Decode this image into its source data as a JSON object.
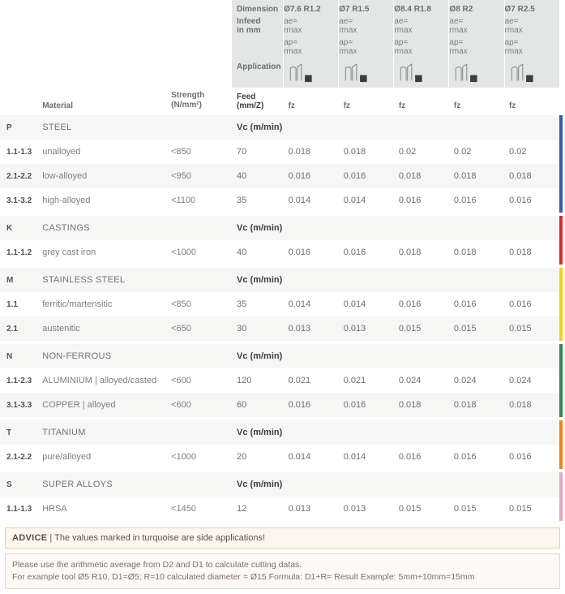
{
  "header": {
    "dimension_label": "Dimension",
    "infeed_label": "Infeed\nin mm",
    "application_label": "Application",
    "material_label": "Material",
    "strength_label": "Strength\n(N/mm²)",
    "feed_label": "Feed (mm/Z)",
    "fz": "fz",
    "ae": "ae=\nrmax",
    "ap": "ap=\nrmax",
    "dims": [
      "Ø7.6  R1.2",
      "Ø7  R1.5",
      "Ø8.4  R1.8",
      "Ø8  R2",
      "Ø7  R2.5"
    ]
  },
  "groups": [
    {
      "code": "P",
      "name": "STEEL",
      "vc_label": "Vc (m/min)",
      "color": "#2f5fa8",
      "rows": [
        {
          "code": "1.1-1.3",
          "mat": "unalloyed",
          "str": "<850",
          "vc": "70",
          "f": [
            "0.018",
            "0.018",
            "0.02",
            "0.02",
            "0.02"
          ]
        },
        {
          "code": "2.1-2.2",
          "mat": "low-alloyed",
          "str": "<950",
          "vc": "40",
          "f": [
            "0.016",
            "0.016",
            "0.018",
            "0.018",
            "0.018"
          ]
        },
        {
          "code": "3.1-3.2",
          "mat": "high-alloyed",
          "str": "<1100",
          "vc": "35",
          "f": [
            "0.014",
            "0.014",
            "0.016",
            "0.016",
            "0.016"
          ]
        }
      ]
    },
    {
      "code": "K",
      "name": "CASTINGS",
      "vc_label": "Vc (m/min)",
      "color": "#da2a2a",
      "rows": [
        {
          "code": "1.1-1.2",
          "mat": "grey cast iron",
          "str": "<1000",
          "vc": "40",
          "f": [
            "0.016",
            "0.016",
            "0.018",
            "0.018",
            "0.018"
          ]
        }
      ]
    },
    {
      "code": "M",
      "name": "STAINLESS STEEL",
      "vc_label": "Vc (m/min)",
      "color": "#f3d21a",
      "rows": [
        {
          "code": "1.1",
          "mat": "ferritic/martensitic",
          "str": "<850",
          "vc": "35",
          "f": [
            "0.014",
            "0.014",
            "0.016",
            "0.016",
            "0.016"
          ]
        },
        {
          "code": "2.1",
          "mat": "austenitic",
          "str": "<650",
          "vc": "30",
          "f": [
            "0.013",
            "0.013",
            "0.015",
            "0.015",
            "0.015"
          ]
        }
      ]
    },
    {
      "code": "N",
      "name": "NON-FERROUS",
      "vc_label": "Vc (m/min)",
      "color": "#2f8a4a",
      "rows": [
        {
          "code": "1.1-2.3",
          "mat": "ALUMINIUM | alloyed/casted",
          "str": "<600",
          "vc": "120",
          "f": [
            "0.021",
            "0.021",
            "0.024",
            "0.024",
            "0.024"
          ]
        },
        {
          "code": "3.1-3.3",
          "mat": "COPPER | alloyed",
          "str": "<600",
          "vc": "60",
          "f": [
            "0.016",
            "0.016",
            "0.018",
            "0.018",
            "0.018"
          ]
        }
      ]
    },
    {
      "code": "T",
      "name": "TITANIUM",
      "vc_label": "Vc (m/min)",
      "color": "#f08519",
      "rows": [
        {
          "code": "2.1-2.2",
          "mat": "pure/alloyed",
          "str": "<1000",
          "vc": "20",
          "f": [
            "0.014",
            "0.014",
            "0.016",
            "0.016",
            "0.016"
          ]
        }
      ]
    },
    {
      "code": "S",
      "name": "SUPER ALLOYS",
      "vc_label": "Vc (m/min)",
      "color": "#e5a8c4",
      "rows": [
        {
          "code": "1.1-1.3",
          "mat": "HRSA",
          "str": "<1450",
          "vc": "12",
          "f": [
            "0.013",
            "0.013",
            "0.015",
            "0.015",
            "0.015"
          ]
        }
      ]
    }
  ],
  "advice": {
    "title": "ADVICE",
    "sep": "  |  ",
    "text": "The values marked in turquoise are side applications!"
  },
  "footnote": {
    "l1": "Please use the arithmetic average from D2 and D1 to calculate cutting datas.",
    "l2": "For example tool Ø5 R10, D1=Ø5; R=10 calculated diameter = Ø15    Formula: D1+R= Result    Example: 5mm+10mm=15mm"
  }
}
